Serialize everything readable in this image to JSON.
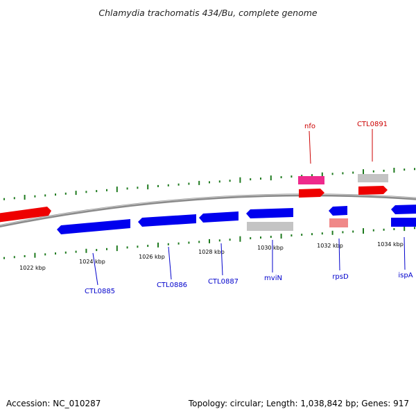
{
  "title": "Chlamydia trachomatis 434/Bu, complete genome",
  "footer": {
    "accession": "Accession: NC_010287",
    "summary": "Topology: circular; Length: 1,038,842 bp; Genes: 917"
  },
  "colors": {
    "backbone": "#8a8a8a",
    "forward_gene": "#ff0000",
    "reverse_gene": "#0000ff",
    "forward_label": "#cc0000",
    "reverse_label": "#0000cc",
    "gc_ticks": "#1e7a1e"
  },
  "scale_labels": [
    "1022 kbp",
    "1024 kbp",
    "1026 kbp",
    "1028 kbp",
    "1030 kbp",
    "1032 kbp",
    "1034 kbp"
  ],
  "gene_labels_top": [
    "nfo",
    "CTL0891"
  ],
  "gene_labels_bottom": [
    "CTL0885",
    "CTL0886",
    "CTL0887",
    "mviN",
    "rpsD",
    "ispA"
  ]
}
